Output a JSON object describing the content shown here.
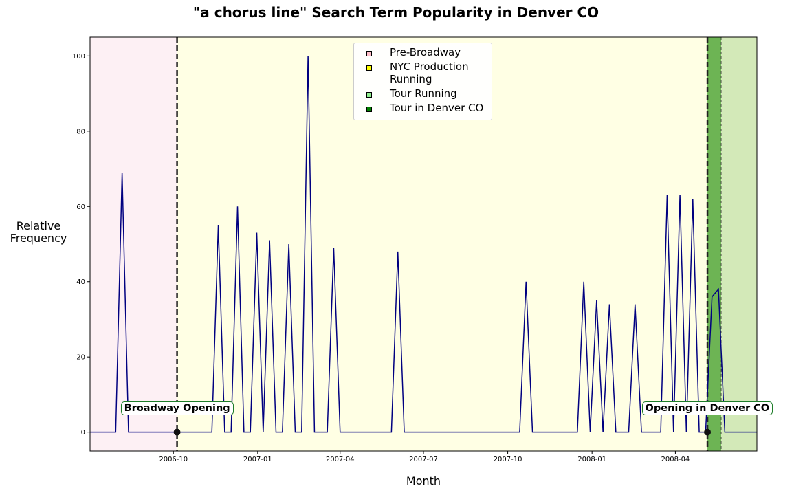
{
  "chart_data": {
    "type": "line",
    "title": "\"a chorus line\" Search Term Popularity in Denver CO",
    "xlabel": "Month",
    "ylabel": "Relative\nFrequency",
    "ylim": [
      -5,
      105
    ],
    "yticks": [
      0,
      20,
      40,
      60,
      80,
      100
    ],
    "xticks": [
      "2006-10",
      "2007-01",
      "2007-04",
      "2007-07",
      "2007-10",
      "2008-01",
      "2008-04"
    ],
    "xlim": [
      "2006-07-02",
      "2008-06-29"
    ],
    "grid": false,
    "legend_placement": "top-center",
    "line_color": "#000080",
    "series": [
      {
        "x": [
          "2006-07-02",
          "2006-07-09",
          "2006-07-16",
          "2006-07-23",
          "2006-07-30",
          "2006-08-06",
          "2006-08-13",
          "2006-08-20",
          "2006-08-27",
          "2006-09-03",
          "2006-09-10",
          "2006-09-17",
          "2006-09-24",
          "2006-10-01",
          "2006-10-08",
          "2006-10-15",
          "2006-10-22",
          "2006-10-29",
          "2006-11-05",
          "2006-11-12",
          "2006-11-19",
          "2006-11-26",
          "2006-12-03",
          "2006-12-10",
          "2006-12-17",
          "2006-12-24",
          "2006-12-31",
          "2007-01-07",
          "2007-01-14",
          "2007-01-21",
          "2007-01-28",
          "2007-02-04",
          "2007-02-11",
          "2007-02-18",
          "2007-02-25",
          "2007-03-04",
          "2007-03-11",
          "2007-03-18",
          "2007-03-25",
          "2007-04-01",
          "2007-04-08",
          "2007-04-15",
          "2007-04-22",
          "2007-05-27",
          "2007-06-03",
          "2007-06-10",
          "2007-06-17",
          "2007-10-14",
          "2007-10-21",
          "2007-10-28",
          "2007-11-04",
          "2007-12-16",
          "2007-12-23",
          "2007-12-30",
          "2008-01-06",
          "2008-01-13",
          "2008-01-20",
          "2008-01-27",
          "2008-02-03",
          "2008-02-10",
          "2008-02-17",
          "2008-02-24",
          "2008-03-02",
          "2008-03-09",
          "2008-03-16",
          "2008-03-23",
          "2008-03-30",
          "2008-04-06",
          "2008-04-13",
          "2008-04-20",
          "2008-04-27",
          "2008-05-04",
          "2008-05-11",
          "2008-05-18",
          "2008-05-25",
          "2008-06-01",
          "2008-06-08",
          "2008-06-15",
          "2008-06-22",
          "2008-06-29"
        ],
        "y": [
          0,
          0,
          0,
          0,
          0,
          69,
          0,
          0,
          0,
          0,
          0,
          0,
          0,
          0,
          0,
          0,
          0,
          0,
          0,
          0,
          55,
          0,
          0,
          60,
          0,
          0,
          53,
          0,
          51,
          0,
          0,
          50,
          0,
          0,
          100,
          0,
          0,
          0,
          49,
          0,
          0,
          0,
          0,
          0,
          48,
          0,
          0,
          0,
          40,
          0,
          0,
          0,
          40,
          0,
          35,
          0,
          34,
          0,
          0,
          0,
          34,
          0,
          0,
          0,
          0,
          63,
          0,
          63,
          0,
          62,
          0,
          0,
          36,
          38,
          0,
          0,
          0,
          0,
          0,
          0
        ]
      }
    ],
    "periods": [
      {
        "name": "Pre-Broadway",
        "start": "2006-07-02",
        "end": "2006-10-05",
        "color": "#fdf0f4"
      },
      {
        "name": "NYC Production Running",
        "start": "2006-10-05",
        "end": "2008-05-06",
        "color": "#ffffe4"
      },
      {
        "name": "Tour in Denver CO",
        "start": "2008-05-06",
        "end": "2008-05-21",
        "color": "#6db454"
      },
      {
        "name": "Tour Running",
        "start": "2008-05-21",
        "end": "2008-06-29",
        "color": "#d3e9b8"
      }
    ],
    "events": [
      {
        "label": "Broadway Opening",
        "date": "2006-10-05"
      },
      {
        "label": "Opening in Denver CO",
        "date": "2008-05-06"
      }
    ],
    "legend": [
      {
        "label": "Pre-Broadway",
        "color": "#ffc0cb"
      },
      {
        "label": "NYC Production Running",
        "color": "#ffff00"
      },
      {
        "label": "Tour Running",
        "color": "#90ee90"
      },
      {
        "label": "Tour in Denver CO",
        "color": "#008000"
      }
    ]
  }
}
